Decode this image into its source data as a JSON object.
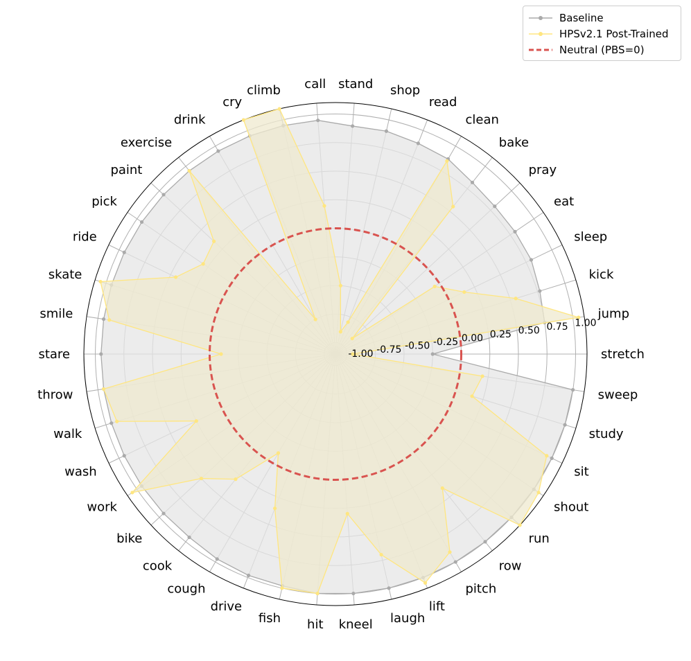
{
  "chart_data": {
    "type": "radar",
    "categories": [
      "stretch",
      "jump",
      "kick",
      "sleep",
      "eat",
      "pray",
      "bake",
      "clean",
      "read",
      "shop",
      "stand",
      "call",
      "climb",
      "cry",
      "drink",
      "exercise",
      "paint",
      "pick",
      "ride",
      "skate",
      "smile",
      "stare",
      "throw",
      "walk",
      "wash",
      "work",
      "bike",
      "cook",
      "cough",
      "drive",
      "fish",
      "hit",
      "kneel",
      "laugh",
      "lift",
      "pitch",
      "row",
      "run",
      "shout",
      "sit",
      "study",
      "sweep"
    ],
    "radial_ticks": [
      -1.0,
      -0.75,
      -0.5,
      -0.25,
      0.0,
      0.25,
      0.5,
      0.75,
      1.0
    ],
    "radial_tick_labels": [
      "-1.00",
      "-0.75",
      "-0.50",
      "-0.25",
      "0.00",
      "0.25",
      "0.50",
      "0.75",
      "1.00"
    ],
    "rlim": [
      -1.1,
      1.1
    ],
    "grid": true,
    "series": [
      {
        "name": "Baseline",
        "color": "#aaaaaa",
        "fill": "#e5e5e5",
        "values": [
          -0.25,
          0.75,
          0.77,
          0.8,
          0.8,
          0.8,
          0.82,
          0.87,
          0.88,
          0.9,
          0.9,
          0.95,
          0.95,
          0.95,
          0.95,
          0.95,
          0.95,
          0.95,
          0.95,
          0.95,
          0.95,
          0.95,
          0.95,
          0.95,
          0.95,
          0.95,
          0.95,
          0.95,
          0.97,
          0.98,
          0.98,
          1.0,
          1.0,
          1.0,
          1.0,
          1.0,
          1.0,
          1.0,
          1.0,
          1.0,
          1.0,
          1.0
        ]
      },
      {
        "name": "HPSv2.1 Post-Trained",
        "color": "#ffe680",
        "fill": "#efe9cf",
        "values": [
          -0.95,
          1.05,
          0.55,
          0.15,
          -0.05,
          -0.9,
          0.55,
          0.85,
          -0.8,
          -0.9,
          -0.5,
          0.2,
          1.1,
          1.1,
          -0.75,
          0.95,
          0.35,
          0.3,
          0.45,
          1.05,
          0.9,
          -0.1,
          0.95,
          0.9,
          0.25,
          1.05,
          0.5,
          0.3,
          -0.1,
          0.35,
          1.0,
          1.0,
          0.3,
          0.7,
          1.05,
          0.9,
          0.4,
          1.1,
          1.05,
          0.95,
          0.15,
          0.2
        ]
      },
      {
        "name": "Neutral (PBS=0)",
        "color": "#d9534f",
        "value": 0.0
      }
    ],
    "legend_position": "upper-right"
  }
}
